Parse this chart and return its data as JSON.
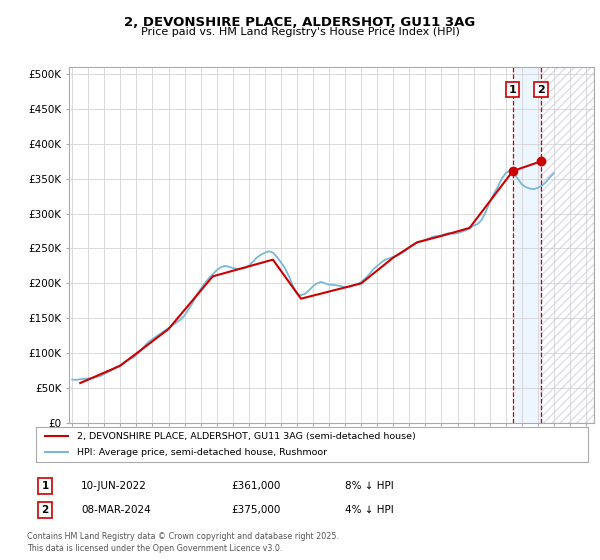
{
  "title": "2, DEVONSHIRE PLACE, ALDERSHOT, GU11 3AG",
  "subtitle": "Price paid vs. HM Land Registry's House Price Index (HPI)",
  "ylabel_ticks": [
    "£0",
    "£50K",
    "£100K",
    "£150K",
    "£200K",
    "£250K",
    "£300K",
    "£350K",
    "£400K",
    "£450K",
    "£500K"
  ],
  "ytick_values": [
    0,
    50000,
    100000,
    150000,
    200000,
    250000,
    300000,
    350000,
    400000,
    450000,
    500000
  ],
  "ylim": [
    0,
    510000
  ],
  "xlim_start": 1994.8,
  "xlim_end": 2027.5,
  "hpi_color": "#7ab8d9",
  "price_color": "#cc0000",
  "marker1_date": 2022.44,
  "marker1_value": 361000,
  "marker2_date": 2024.19,
  "marker2_value": 375000,
  "marker1_label": "1",
  "marker2_label": "2",
  "shade_start": 2022.44,
  "shade_end": 2024.19,
  "hatch_start": 2024.19,
  "hatch_end": 2027.5,
  "legend_line1": "2, DEVONSHIRE PLACE, ALDERSHOT, GU11 3AG (semi-detached house)",
  "legend_line2": "HPI: Average price, semi-detached house, Rushmoor",
  "table_row1": [
    "1",
    "10-JUN-2022",
    "£361,000",
    "8% ↓ HPI"
  ],
  "table_row2": [
    "2",
    "08-MAR-2024",
    "£375,000",
    "4% ↓ HPI"
  ],
  "footnote": "Contains HM Land Registry data © Crown copyright and database right 2025.\nThis data is licensed under the Open Government Licence v3.0.",
  "background_color": "#ffffff",
  "grid_color": "#cccccc",
  "hpi_data_x": [
    1995.0,
    1995.25,
    1995.5,
    1995.75,
    1996.0,
    1996.25,
    1996.5,
    1996.75,
    1997.0,
    1997.25,
    1997.5,
    1997.75,
    1998.0,
    1998.25,
    1998.5,
    1998.75,
    1999.0,
    1999.25,
    1999.5,
    1999.75,
    2000.0,
    2000.25,
    2000.5,
    2000.75,
    2001.0,
    2001.25,
    2001.5,
    2001.75,
    2002.0,
    2002.25,
    2002.5,
    2002.75,
    2003.0,
    2003.25,
    2003.5,
    2003.75,
    2004.0,
    2004.25,
    2004.5,
    2004.75,
    2005.0,
    2005.25,
    2005.5,
    2005.75,
    2006.0,
    2006.25,
    2006.5,
    2006.75,
    2007.0,
    2007.25,
    2007.5,
    2007.75,
    2008.0,
    2008.25,
    2008.5,
    2008.75,
    2009.0,
    2009.25,
    2009.5,
    2009.75,
    2010.0,
    2010.25,
    2010.5,
    2010.75,
    2011.0,
    2011.25,
    2011.5,
    2011.75,
    2012.0,
    2012.25,
    2012.5,
    2012.75,
    2013.0,
    2013.25,
    2013.5,
    2013.75,
    2014.0,
    2014.25,
    2014.5,
    2014.75,
    2015.0,
    2015.25,
    2015.5,
    2015.75,
    2016.0,
    2016.25,
    2016.5,
    2016.75,
    2017.0,
    2017.25,
    2017.5,
    2017.75,
    2018.0,
    2018.25,
    2018.5,
    2018.75,
    2019.0,
    2019.25,
    2019.5,
    2019.75,
    2020.0,
    2020.25,
    2020.5,
    2020.75,
    2021.0,
    2021.25,
    2021.5,
    2021.75,
    2022.0,
    2022.25,
    2022.5,
    2022.75,
    2023.0,
    2023.25,
    2023.5,
    2023.75,
    2024.0,
    2024.25,
    2024.5,
    2024.75,
    2025.0
  ],
  "hpi_data_y": [
    62000,
    61500,
    62500,
    63000,
    63500,
    64000,
    65500,
    67000,
    70000,
    73000,
    76000,
    79000,
    83000,
    87000,
    91000,
    93000,
    97000,
    103000,
    110000,
    116000,
    120000,
    124000,
    128000,
    132000,
    136000,
    140000,
    144000,
    148000,
    154000,
    163000,
    172000,
    183000,
    192000,
    200000,
    207000,
    213000,
    219000,
    223000,
    225000,
    224000,
    222000,
    221000,
    221000,
    222000,
    225000,
    231000,
    237000,
    241000,
    244000,
    246000,
    244000,
    238000,
    230000,
    222000,
    210000,
    196000,
    185000,
    183000,
    185000,
    190000,
    196000,
    200000,
    202000,
    200000,
    198000,
    198000,
    197000,
    196000,
    194000,
    195000,
    197000,
    199000,
    202000,
    207000,
    213000,
    220000,
    225000,
    230000,
    234000,
    236000,
    238000,
    240000,
    243000,
    247000,
    252000,
    256000,
    259000,
    260000,
    262000,
    265000,
    267000,
    268000,
    269000,
    271000,
    272000,
    271000,
    272000,
    274000,
    276000,
    279000,
    283000,
    285000,
    291000,
    302000,
    316000,
    328000,
    338000,
    350000,
    358000,
    362000,
    358000,
    350000,
    342000,
    338000,
    336000,
    335000,
    337000,
    340000,
    345000,
    352000,
    358000
  ],
  "price_data_x": [
    1995.5,
    1998.0,
    2001.0,
    2003.75,
    2007.5,
    2009.25,
    2013.0,
    2015.0,
    2016.5,
    2018.0,
    2019.75,
    2022.44,
    2024.19
  ],
  "price_data_y": [
    57000,
    82000,
    134500,
    210000,
    234000,
    178000,
    200000,
    237000,
    259000,
    268000,
    279500,
    361000,
    375000
  ]
}
